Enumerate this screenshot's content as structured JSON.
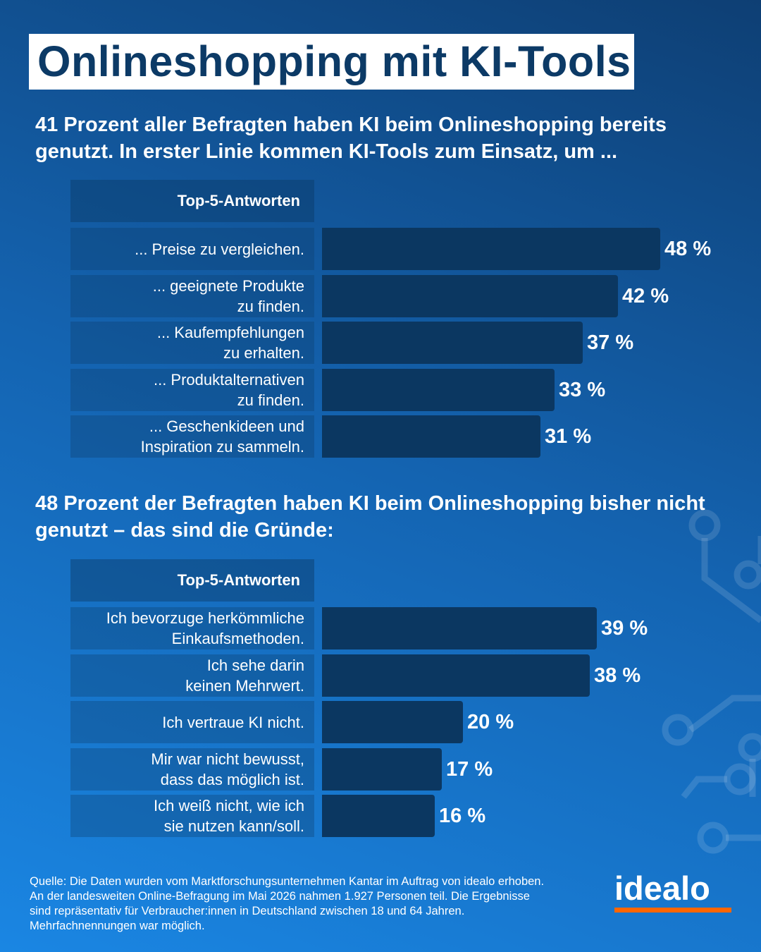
{
  "title": "Onlineshopping mit KI-Tools",
  "colors": {
    "background": "#1463b0",
    "bar": "#0b3761",
    "title_text": "#0c3a66",
    "logo_accent": "#ff6600"
  },
  "chart_data": [
    {
      "type": "bar",
      "orientation": "horizontal",
      "title": "41 Prozent aller Befragten haben KI beim Onlineshopping bereits genutzt. In erster Linie kommen KI-Tools zum Einsatz, um ...",
      "header": "Top-5-Antworten",
      "categories": [
        "... Preise zu vergleichen.",
        "... geeignete Produkte\nzu finden.",
        "... Kaufempfehlungen\nzu erhalten.",
        "... Produktalternativen\nzu finden.",
        "... Geschenkideen und\nInspiration zu sammeln."
      ],
      "values": [
        48,
        42,
        37,
        33,
        31
      ],
      "value_labels": [
        "48 %",
        "42 %",
        "37 %",
        "33 %",
        "31 %"
      ],
      "unit": "%",
      "xlim": [
        0,
        60
      ],
      "grid": false
    },
    {
      "type": "bar",
      "orientation": "horizontal",
      "title": "48 Prozent der Befragten haben KI beim Onlineshopping bisher nicht genutzt – das sind die Gründe:",
      "header": "Top-5-Antworten",
      "categories": [
        "Ich bevorzuge herkömmliche\nEinkaufsmethoden.",
        "Ich sehe darin\nkeinen Mehrwert.",
        "Ich vertraue KI nicht.",
        "Mir war nicht bewusst,\ndass das möglich ist.",
        "Ich weiß nicht, wie ich\nsie nutzen kann/soll."
      ],
      "values": [
        39,
        38,
        20,
        17,
        16
      ],
      "value_labels": [
        "39 %",
        "38 %",
        "20 %",
        "17 %",
        "16 %"
      ],
      "unit": "%",
      "xlim": [
        0,
        60
      ],
      "grid": false
    }
  ],
  "source": {
    "lines": [
      "Quelle: Die Daten wurden vom Marktforschungsunternehmen Kantar im Auftrag von idealo erhoben.",
      "An der landesweiten Online-Befragung im Mai 2026 nahmen 1.927 Personen teil. Die Ergebnisse",
      "sind repräsentativ für Verbraucher:innen in Deutschland zwischen 18 und 64 Jahren.",
      "Mehrfachnennungen war möglich."
    ]
  },
  "logo": {
    "text": "idealo"
  }
}
